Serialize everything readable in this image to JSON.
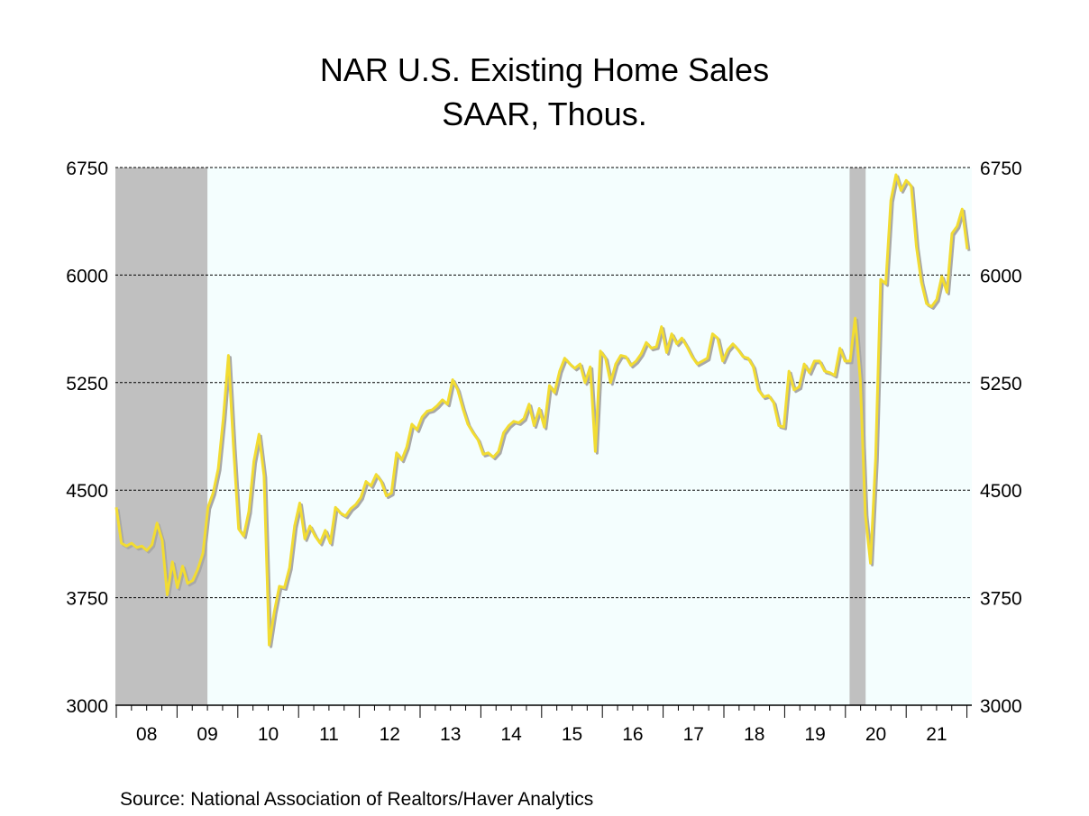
{
  "chart_data": {
    "type": "line",
    "title": "NAR U.S. Existing Home Sales",
    "subtitle": "SAAR, Thous.",
    "source": "Source:  National Association of Realtors/Haver Analytics",
    "xlabel": "",
    "ylabel": "",
    "ylim": [
      3000,
      6750
    ],
    "yticks": [
      3000,
      3750,
      4500,
      5250,
      6000,
      6750
    ],
    "y_axis_sides": "left-and-right",
    "x_range": [
      "2008-01",
      "2021-12"
    ],
    "x_frequency": "monthly",
    "x_tick_labels": [
      "08",
      "09",
      "10",
      "11",
      "12",
      "13",
      "14",
      "15",
      "16",
      "17",
      "18",
      "19",
      "20",
      "21"
    ],
    "grid": "horizontal-dashed",
    "colors": {
      "line": "#F2DC32",
      "shadow": "#A8A8A8",
      "recession": "#C0C0C0",
      "plot_bg": "#F4FEFE"
    },
    "recessions": [
      {
        "start": "2008-01",
        "end": "2009-06"
      },
      {
        "start": "2020-02",
        "end": "2020-04"
      }
    ],
    "series": [
      {
        "values": [
          4380,
          4130,
          4110,
          4130,
          4100,
          4110,
          4080,
          4120,
          4270,
          4150,
          3770,
          4000,
          3820,
          3970,
          3850,
          3870,
          3950,
          4060,
          4380,
          4480,
          4650,
          5000,
          5440,
          4800,
          4230,
          4180,
          4350,
          4700,
          4890,
          4600,
          3420,
          3650,
          3830,
          3820,
          3960,
          4250,
          4410,
          4160,
          4250,
          4180,
          4130,
          4220,
          4130,
          4380,
          4340,
          4320,
          4370,
          4400,
          4450,
          4560,
          4530,
          4610,
          4560,
          4460,
          4480,
          4760,
          4710,
          4800,
          4960,
          4920,
          5010,
          5050,
          5060,
          5090,
          5130,
          5100,
          5270,
          5200,
          5070,
          4960,
          4900,
          4850,
          4750,
          4760,
          4730,
          4770,
          4900,
          4950,
          4980,
          4970,
          5000,
          5100,
          4950,
          5070,
          4940,
          5230,
          5180,
          5330,
          5420,
          5380,
          5350,
          5380,
          5250,
          5360,
          4770,
          5470,
          5420,
          5250,
          5380,
          5440,
          5430,
          5370,
          5400,
          5450,
          5530,
          5490,
          5500,
          5640,
          5460,
          5590,
          5520,
          5560,
          5500,
          5430,
          5380,
          5400,
          5420,
          5590,
          5560,
          5400,
          5480,
          5520,
          5480,
          5430,
          5420,
          5360,
          5200,
          5150,
          5160,
          5110,
          4950,
          4940,
          5330,
          5200,
          5220,
          5380,
          5320,
          5400,
          5400,
          5330,
          5320,
          5300,
          5490,
          5400,
          5400,
          5700,
          5270,
          4330,
          3990,
          4720,
          5970,
          5940,
          6520,
          6700,
          6590,
          6660,
          6620,
          6200,
          5950,
          5800,
          5780,
          5830,
          5990,
          5880,
          6290,
          6340,
          6460,
          6180
        ]
      }
    ]
  }
}
